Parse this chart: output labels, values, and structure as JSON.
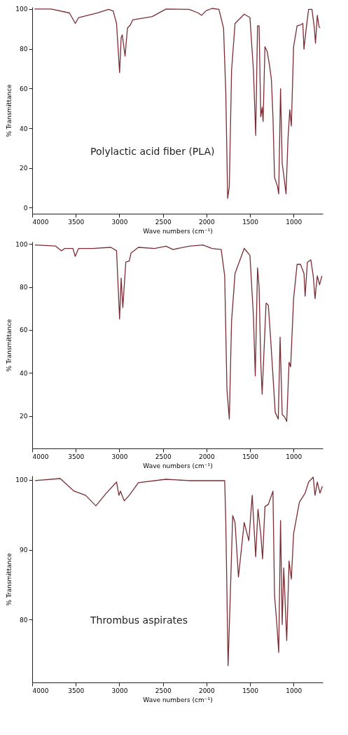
{
  "chart_data": [
    {
      "type": "line",
      "xlabel": "Wave numbers (cm⁻¹)",
      "ylabel": "% Transmittance",
      "color": "#7b2d35",
      "xlim": [
        4000,
        665
      ],
      "ylim": [
        -3,
        101
      ],
      "xticks": [
        4000,
        3500,
        3000,
        2500,
        2000,
        1500,
        1000
      ],
      "yticks": [
        0,
        20,
        40,
        60,
        80,
        100
      ],
      "annotations": [
        "Polylactic acid fiber (PLA)"
      ],
      "x": [
        3974,
        3784,
        3572,
        3506,
        3467,
        3256,
        3124,
        3071,
        3032,
        2997,
        2979,
        2966,
        2934,
        2907,
        2873,
        2847,
        2622,
        2464,
        2200,
        2094,
        2055,
        2002,
        1936,
        1857,
        1804,
        1778,
        1757,
        1738,
        1712,
        1672,
        1567,
        1501,
        1461,
        1435,
        1414,
        1396,
        1377,
        1361,
        1350,
        1329,
        1303,
        1276,
        1255,
        1237,
        1219,
        1184,
        1171,
        1150,
        1131,
        1113,
        1087,
        1065,
        1044,
        1026,
        1000,
        960,
        921,
        894,
        881,
        855,
        828,
        789,
        762,
        749,
        728,
        710,
        697
      ],
      "values": [
        100,
        100,
        98,
        92.7,
        95.7,
        98,
        99.8,
        99,
        92.7,
        68,
        85.7,
        87,
        76.3,
        90.4,
        92,
        94.5,
        96.2,
        100,
        99.8,
        98,
        96.8,
        99.2,
        100.3,
        99.8,
        90.4,
        57.5,
        4.7,
        10.6,
        69,
        92.7,
        97.4,
        95.7,
        69,
        36.4,
        91.5,
        91.5,
        45.8,
        50.5,
        43.4,
        81,
        78.6,
        71.6,
        64.6,
        45.8,
        15.3,
        10.6,
        7,
        59.9,
        22.3,
        16.4,
        7,
        34,
        49.3,
        41.1,
        81,
        91.5,
        92,
        92.7,
        79.8,
        90.4,
        99.8,
        99.8,
        90.4,
        82.8,
        96.8,
        91.5,
        90.4
      ]
    },
    {
      "type": "line",
      "xlabel": "Wave numbers (cm⁻¹)",
      "ylabel": "% Transmittance",
      "color": "#7b2d35",
      "xlim": [
        4000,
        665
      ],
      "ylim": [
        5,
        101
      ],
      "xticks": [
        4000,
        3500,
        3000,
        2500,
        2000,
        1500,
        1000
      ],
      "yticks": [
        20,
        40,
        60,
        80,
        100
      ],
      "x": [
        3968,
        3731,
        3665,
        3625,
        3533,
        3507,
        3467,
        3309,
        3097,
        3032,
        2997,
        2979,
        2960,
        2926,
        2886,
        2865,
        2781,
        2596,
        2464,
        2385,
        2200,
        2042,
        1936,
        1831,
        1791,
        1765,
        1738,
        1712,
        1672,
        1567,
        1501,
        1461,
        1440,
        1414,
        1396,
        1377,
        1361,
        1343,
        1316,
        1290,
        1263,
        1245,
        1211,
        1176,
        1155,
        1131,
        1105,
        1079,
        1052,
        1034,
        1000,
        960,
        921,
        881,
        868,
        842,
        802,
        775,
        754,
        728,
        702,
        675
      ],
      "values": [
        99.5,
        99,
        96.8,
        97.9,
        97.9,
        94.2,
        97.9,
        97.9,
        98.4,
        96.8,
        65.1,
        84.1,
        70.4,
        91.5,
        92.1,
        95.8,
        98.4,
        97.9,
        98.9,
        97.4,
        98.9,
        99.5,
        97.9,
        97.4,
        85.2,
        32.3,
        18.6,
        64.1,
        86.3,
        97.9,
        94.7,
        66.2,
        38.7,
        88.9,
        79.9,
        45,
        30.2,
        47.1,
        72.5,
        71.5,
        55.6,
        44,
        21.8,
        18.6,
        56.7,
        20.7,
        19.7,
        17.5,
        45,
        42.9,
        74.6,
        90.5,
        90.5,
        86.3,
        75.7,
        91.5,
        92.6,
        85.2,
        74.6,
        85.2,
        81,
        85.2
      ]
    },
    {
      "type": "line",
      "xlabel": "Wave numbers (cm⁻¹)",
      "ylabel": "% Transmittance",
      "color": "#7b2d35",
      "xlim": [
        4000,
        665
      ],
      "ylim": [
        71,
        100.6
      ],
      "xticks": [
        4000,
        3500,
        3000,
        2500,
        2000,
        1500,
        1000
      ],
      "yticks": [
        80,
        90,
        100
      ],
      "annotations": [
        "Thrombus aspirates"
      ],
      "x": [
        3968,
        3678,
        3520,
        3388,
        3269,
        3150,
        3032,
        3005,
        2987,
        2944,
        2886,
        2781,
        2464,
        2200,
        1936,
        1791,
        1778,
        1752,
        1725,
        1699,
        1672,
        1633,
        1567,
        1514,
        1475,
        1435,
        1409,
        1377,
        1356,
        1329,
        1290,
        1237,
        1219,
        1192,
        1171,
        1150,
        1131,
        1113,
        1079,
        1052,
        1026,
        1000,
        934,
        868,
        828,
        775,
        754,
        728,
        697,
        670
      ],
      "values": [
        99.9,
        100.2,
        98.4,
        97.8,
        96.3,
        98.1,
        99.7,
        97.8,
        98.4,
        97,
        97.8,
        99.6,
        100.1,
        99.9,
        99.9,
        99.9,
        93.9,
        73.4,
        84.1,
        94.9,
        93.9,
        86.1,
        93.9,
        91.3,
        97.8,
        89,
        95.8,
        92.3,
        88.7,
        96.2,
        96.5,
        98.4,
        83.5,
        79.3,
        75.3,
        94.2,
        79.3,
        87.4,
        77,
        88.4,
        85.8,
        92.3,
        96.8,
        98.1,
        99.7,
        100.4,
        97.8,
        99.7,
        98.1,
        99.1
      ]
    }
  ]
}
